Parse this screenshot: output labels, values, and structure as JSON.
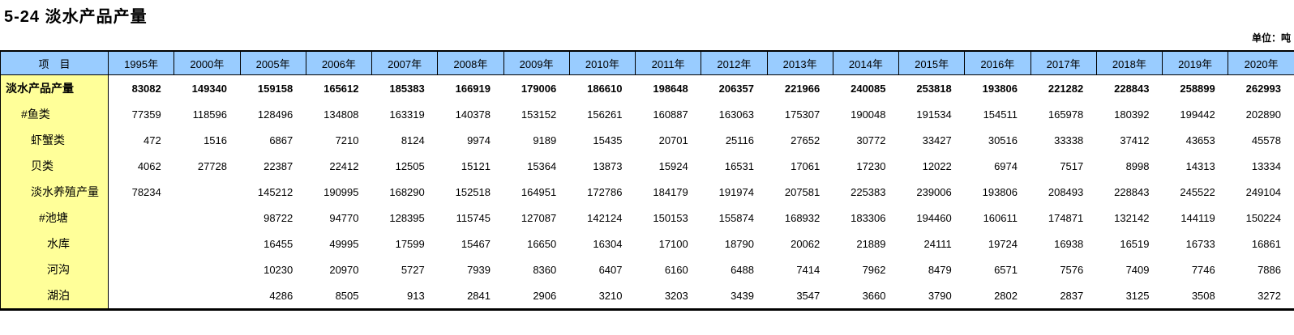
{
  "page": {
    "title": "5-24 淡水产品产量",
    "unit_label": "单位：吨"
  },
  "colors": {
    "header_bg": "#99CCFF",
    "label_bg": "#FFFF99",
    "border": "#000000"
  },
  "table": {
    "header": {
      "item_label": "项　目",
      "years": [
        "1995年",
        "2000年",
        "2005年",
        "2006年",
        "2007年",
        "2008年",
        "2009年",
        "2010年",
        "2011年",
        "2012年",
        "2013年",
        "2014年",
        "2015年",
        "2016年",
        "2017年",
        "2018年",
        "2019年",
        "2020年"
      ]
    },
    "rows": [
      {
        "label": "淡水产品产量",
        "indent": 0,
        "bold": true,
        "values": [
          "83082",
          "149340",
          "159158",
          "165612",
          "185383",
          "166919",
          "179006",
          "186610",
          "198648",
          "206357",
          "221966",
          "240085",
          "253818",
          "193806",
          "221282",
          "228843",
          "258899",
          "262993"
        ]
      },
      {
        "label": "#鱼类",
        "indent": 1,
        "bold": false,
        "values": [
          "77359",
          "118596",
          "128496",
          "134808",
          "163319",
          "140378",
          "153152",
          "156261",
          "160887",
          "163063",
          "175307",
          "190048",
          "191534",
          "154511",
          "165978",
          "180392",
          "199442",
          "202890"
        ]
      },
      {
        "label": "虾蟹类",
        "indent": 2,
        "bold": false,
        "values": [
          "472",
          "1516",
          "6867",
          "7210",
          "8124",
          "9974",
          "9189",
          "15435",
          "20701",
          "25116",
          "27652",
          "30772",
          "33427",
          "30516",
          "33338",
          "37412",
          "43653",
          "45578"
        ]
      },
      {
        "label": "贝类",
        "indent": 2,
        "bold": false,
        "values": [
          "4062",
          "27728",
          "22387",
          "22412",
          "12505",
          "15121",
          "15364",
          "13873",
          "15924",
          "16531",
          "17061",
          "17230",
          "12022",
          "6974",
          "7517",
          "8998",
          "14313",
          "13334"
        ]
      },
      {
        "label": "淡水养殖产量",
        "indent": 2,
        "bold": false,
        "values": [
          "78234",
          "",
          "145212",
          "190995",
          "168290",
          "152518",
          "164951",
          "172786",
          "184179",
          "191974",
          "207581",
          "225383",
          "239006",
          "193806",
          "208493",
          "228843",
          "245522",
          "249104"
        ]
      },
      {
        "label": "#池塘",
        "indent": 3,
        "bold": false,
        "values": [
          "",
          "",
          "98722",
          "94770",
          "128395",
          "115745",
          "127087",
          "142124",
          "150153",
          "155874",
          "168932",
          "183306",
          "194460",
          "160611",
          "174871",
          "132142",
          "144119",
          "150224"
        ]
      },
      {
        "label": "水库",
        "indent": 4,
        "bold": false,
        "values": [
          "",
          "",
          "16455",
          "49995",
          "17599",
          "15467",
          "16650",
          "16304",
          "17100",
          "18790",
          "20062",
          "21889",
          "24111",
          "19724",
          "16938",
          "16519",
          "16733",
          "16861"
        ]
      },
      {
        "label": "河沟",
        "indent": 4,
        "bold": false,
        "values": [
          "",
          "",
          "10230",
          "20970",
          "5727",
          "7939",
          "8360",
          "6407",
          "6160",
          "6488",
          "7414",
          "7962",
          "8479",
          "6571",
          "7576",
          "7409",
          "7746",
          "7886"
        ]
      },
      {
        "label": "湖泊",
        "indent": 4,
        "bold": false,
        "values": [
          "",
          "",
          "4286",
          "8505",
          "913",
          "2841",
          "2906",
          "3210",
          "3203",
          "3439",
          "3547",
          "3660",
          "3790",
          "2802",
          "2837",
          "3125",
          "3508",
          "3272"
        ]
      }
    ]
  }
}
